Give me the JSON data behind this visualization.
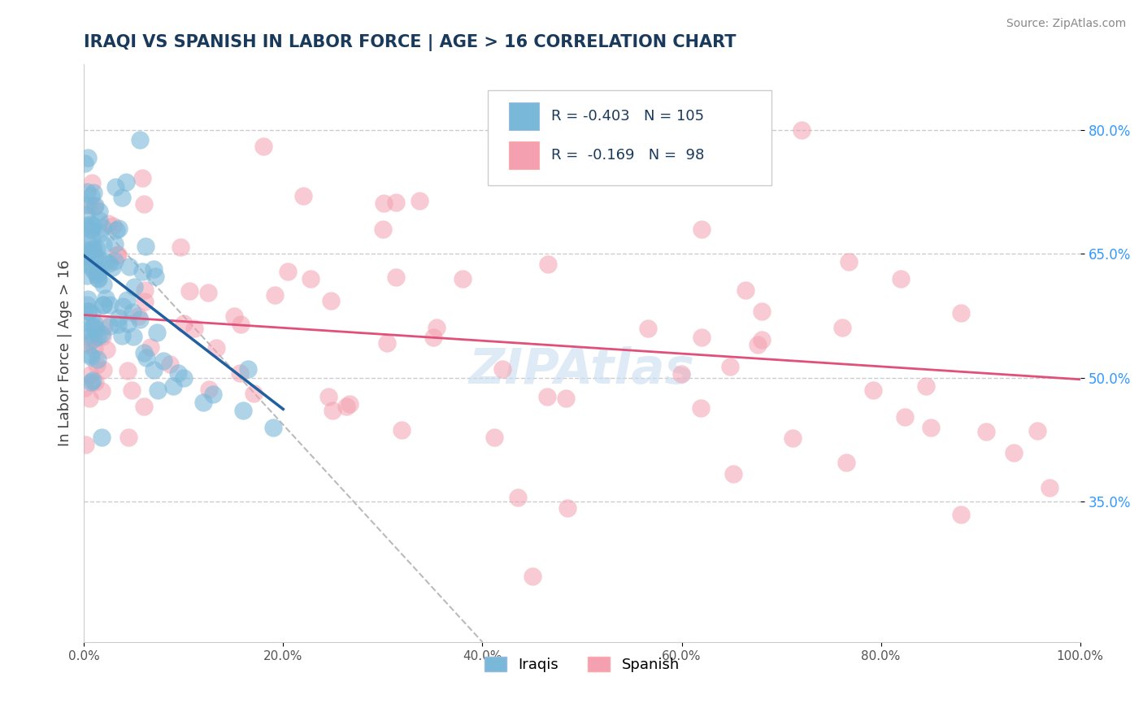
{
  "title": "IRAQI VS SPANISH IN LABOR FORCE | AGE > 16 CORRELATION CHART",
  "source_text": "Source: ZipAtlas.com",
  "ylabel": "In Labor Force | Age > 16",
  "xlim": [
    0,
    1.0
  ],
  "ylim": [
    0.18,
    0.88
  ],
  "xticks": [
    0.0,
    0.2,
    0.4,
    0.6,
    0.8,
    1.0
  ],
  "xtick_labels": [
    "0.0%",
    "20.0%",
    "40.0%",
    "60.0%",
    "80.0%",
    "100.0%"
  ],
  "yticks": [
    0.35,
    0.5,
    0.65,
    0.8
  ],
  "ytick_labels": [
    "35.0%",
    "50.0%",
    "65.0%",
    "80.0%"
  ],
  "R_iraqis": -0.403,
  "N_iraqis": 105,
  "R_spanish": -0.169,
  "N_spanish": 98,
  "legend_label_iraqis": "Iraqis",
  "legend_label_spanish": "Spanish",
  "iraqis_color": "#7ab8d9",
  "spanish_color": "#f4a0b0",
  "iraqis_line_color": "#2060a0",
  "spanish_line_color": "#e0507a",
  "background_color": "#ffffff",
  "title_color": "#1a3a5c",
  "source_color": "#888888",
  "watermark_color": "#c8dff0",
  "grid_color": "#cccccc",
  "iraqi_line_x": [
    0.0,
    0.2
  ],
  "iraqi_line_y": [
    0.648,
    0.462
  ],
  "spanish_line_x": [
    0.0,
    1.0
  ],
  "spanish_line_y": [
    0.576,
    0.498
  ],
  "diag_line_x": [
    0.02,
    0.4
  ],
  "diag_line_y": [
    0.68,
    0.18
  ]
}
